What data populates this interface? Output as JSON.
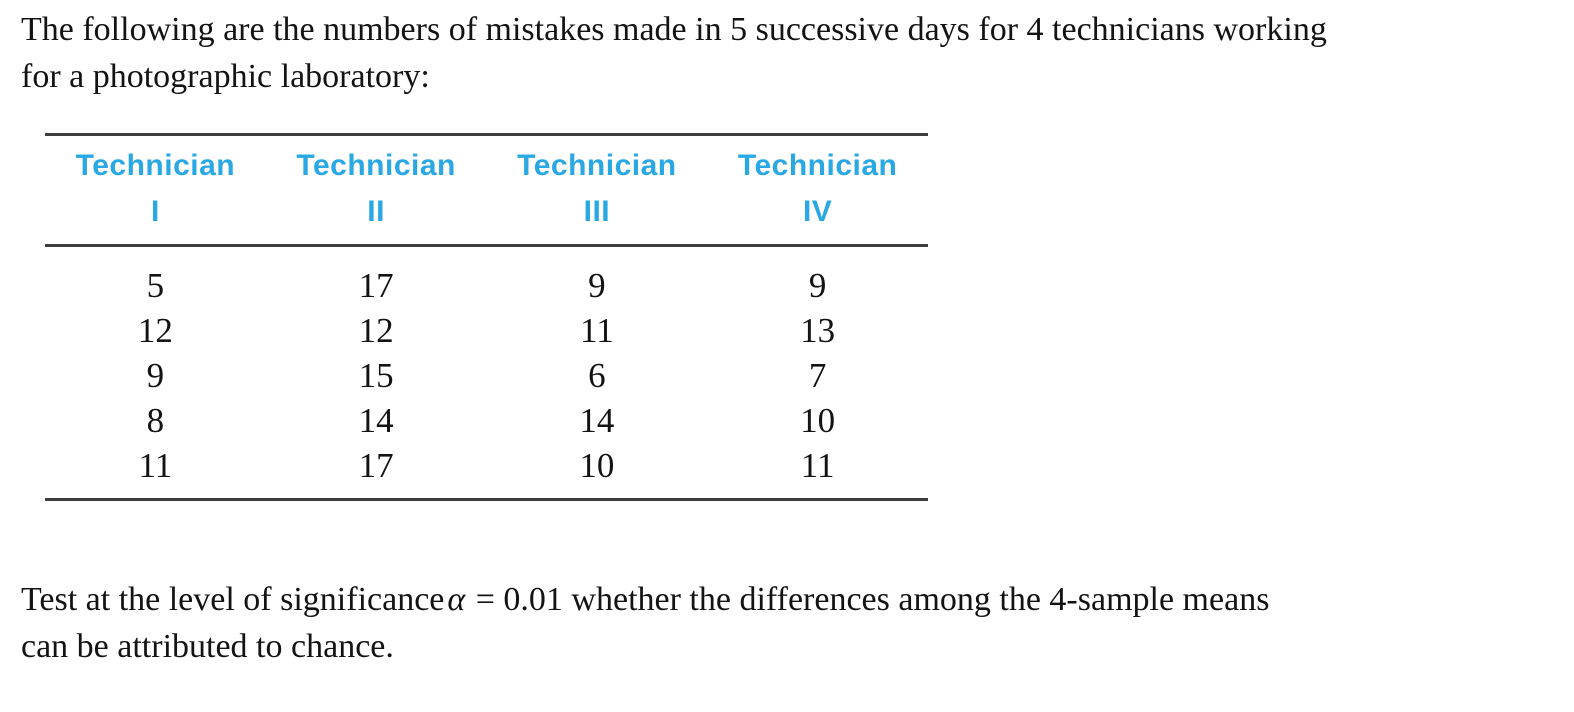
{
  "intro": {
    "line1": "The following are the numbers of mistakes made in 5 successive days for 4 technicians working",
    "line2": "for a photographic laboratory:"
  },
  "table": {
    "columns": [
      {
        "title": "Technician",
        "numeral": "I"
      },
      {
        "title": "Technician",
        "numeral": "II"
      },
      {
        "title": "Technician",
        "numeral": "III"
      },
      {
        "title": "Technician",
        "numeral": "IV"
      }
    ],
    "rows": [
      [
        5,
        17,
        9,
        9
      ],
      [
        12,
        12,
        11,
        13
      ],
      [
        9,
        15,
        6,
        7
      ],
      [
        8,
        14,
        14,
        10
      ],
      [
        11,
        17,
        10,
        11
      ]
    ]
  },
  "question": {
    "part1": "Test at the level of significance",
    "alpha": "α",
    "part2": "= 0.01 whether the differences among the 4-sample means",
    "line2": "can be attributed to chance."
  },
  "colors": {
    "header_blue": "#29a8e3",
    "rule_gray": "#3e3e3e",
    "text_black": "#131313"
  }
}
